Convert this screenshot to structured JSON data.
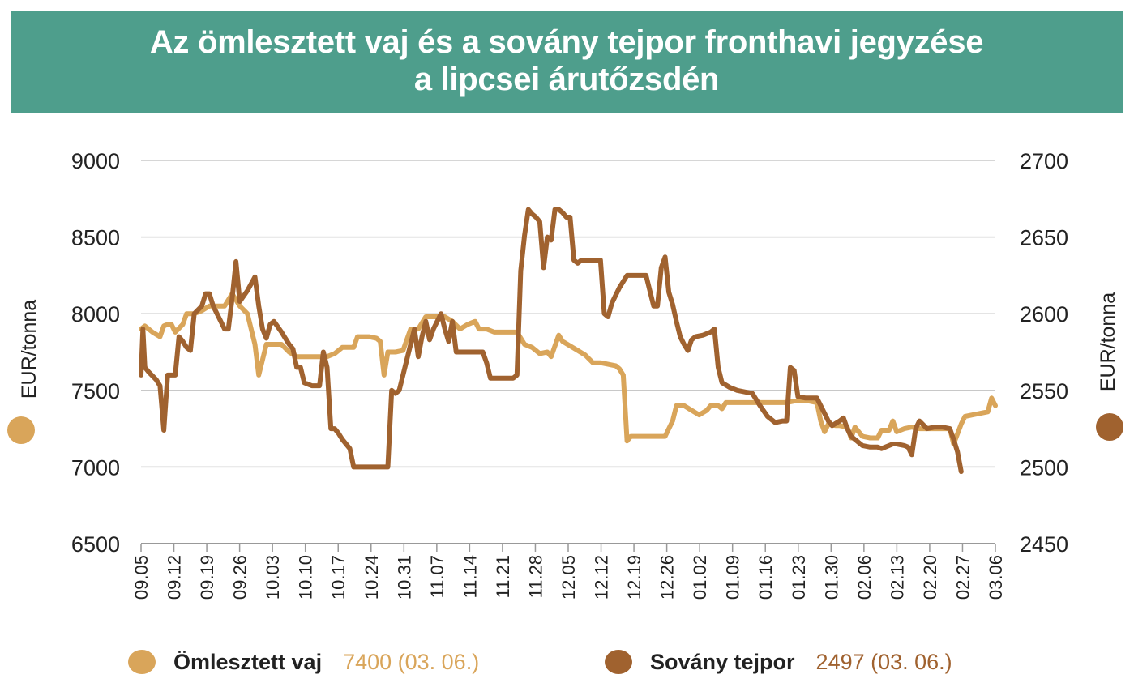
{
  "title": {
    "line1": "Az ömlesztett vaj és a sovány tejpor fronthavi jegyzése",
    "line2": "a lipcsei árutőzsdén"
  },
  "colors": {
    "header_bg": "#4e9e8c",
    "butter": "#d9a55a",
    "milk_powder": "#a0622f",
    "grid": "#c8c8c8"
  },
  "legend": {
    "butter_name": "Ömlesztett vaj",
    "butter_value": "7400 (03. 06.)",
    "milk_name": "Sovány tejpor",
    "milk_value": "2497 (03. 06.)"
  },
  "chart_data": {
    "type": "line",
    "ylabel_left": "EUR/tonna",
    "ylabel_right": "EUR/tonna",
    "ylim_left": [
      6500,
      9000
    ],
    "ylim_right": [
      2450,
      2700
    ],
    "yticks_left": [
      6500,
      7000,
      7500,
      8000,
      8500,
      9000
    ],
    "yticks_right": [
      2450,
      2500,
      2550,
      2600,
      2650,
      2700
    ],
    "x_tick_labels": [
      "09.05",
      "09.12",
      "09.19",
      "09.26",
      "10.03",
      "10.10",
      "10.17",
      "10.24",
      "10.31",
      "11.07",
      "11.14",
      "11.21",
      "11.28",
      "12.05",
      "12.12",
      "12.19",
      "12.26",
      "01.02",
      "01.09",
      "01.16",
      "01.23",
      "01.30",
      "02.06",
      "02.13",
      "02.20",
      "02.27",
      "03.06"
    ],
    "x_index_range": [
      0,
      182
    ],
    "grid": "horizontal",
    "legend_position": "bottom",
    "series": [
      {
        "name": "Ömlesztett vaj",
        "axis": "left",
        "points": [
          [
            0,
            7900
          ],
          [
            1,
            7920
          ],
          [
            3,
            7880
          ],
          [
            5,
            7850
          ],
          [
            6,
            7920
          ],
          [
            7,
            7930
          ],
          [
            8,
            7930
          ],
          [
            9,
            7880
          ],
          [
            11,
            7930
          ],
          [
            12,
            8000
          ],
          [
            14,
            8000
          ],
          [
            16,
            8020
          ],
          [
            18,
            8050
          ],
          [
            20,
            8050
          ],
          [
            22,
            8050
          ],
          [
            24,
            8130
          ],
          [
            26,
            8050
          ],
          [
            28,
            8000
          ],
          [
            30,
            7800
          ],
          [
            31,
            7600
          ],
          [
            32,
            7700
          ],
          [
            33,
            7800
          ],
          [
            35,
            7800
          ],
          [
            37,
            7800
          ],
          [
            39,
            7750
          ],
          [
            41,
            7720
          ],
          [
            43,
            7720
          ],
          [
            45,
            7720
          ],
          [
            47,
            7720
          ],
          [
            49,
            7720
          ],
          [
            51,
            7740
          ],
          [
            53,
            7780
          ],
          [
            56,
            7780
          ],
          [
            57,
            7850
          ],
          [
            60,
            7850
          ],
          [
            62,
            7840
          ],
          [
            63,
            7820
          ],
          [
            64,
            7600
          ],
          [
            65,
            7750
          ],
          [
            67,
            7750
          ],
          [
            69,
            7760
          ],
          [
            71,
            7900
          ],
          [
            73,
            7900
          ],
          [
            75,
            7980
          ],
          [
            78,
            7980
          ],
          [
            80,
            7980
          ],
          [
            82,
            7950
          ],
          [
            84,
            7900
          ],
          [
            86,
            7930
          ],
          [
            88,
            7950
          ],
          [
            89,
            7900
          ],
          [
            91,
            7900
          ],
          [
            93,
            7880
          ],
          [
            95,
            7880
          ],
          [
            97,
            7880
          ],
          [
            99,
            7880
          ],
          [
            101,
            7800
          ],
          [
            103,
            7780
          ],
          [
            105,
            7740
          ],
          [
            107,
            7750
          ],
          [
            108,
            7720
          ],
          [
            110,
            7860
          ],
          [
            111,
            7820
          ],
          [
            113,
            7790
          ],
          [
            115,
            7760
          ],
          [
            117,
            7730
          ],
          [
            119,
            7680
          ],
          [
            121,
            7680
          ],
          [
            123,
            7670
          ],
          [
            125,
            7660
          ],
          [
            126,
            7640
          ],
          [
            127,
            7600
          ],
          [
            128,
            7170
          ],
          [
            129,
            7200
          ],
          [
            131,
            7200
          ],
          [
            133,
            7200
          ],
          [
            135,
            7200
          ],
          [
            137,
            7200
          ],
          [
            138,
            7200
          ],
          [
            140,
            7300
          ],
          [
            141,
            7400
          ],
          [
            143,
            7400
          ],
          [
            145,
            7370
          ],
          [
            147,
            7340
          ],
          [
            149,
            7370
          ],
          [
            150,
            7400
          ],
          [
            152,
            7400
          ],
          [
            153,
            7380
          ],
          [
            154,
            7420
          ],
          [
            156,
            7420
          ],
          [
            158,
            7420
          ],
          [
            160,
            7420
          ],
          [
            162,
            7420
          ],
          [
            164,
            7420
          ],
          [
            166,
            7420
          ],
          [
            168,
            7420
          ],
          [
            170,
            7420
          ],
          [
            172,
            7430
          ],
          [
            174,
            7430
          ],
          [
            176,
            7430
          ],
          [
            178,
            7420
          ],
          [
            179,
            7300
          ],
          [
            180,
            7230
          ],
          [
            181,
            7280
          ],
          [
            183,
            7270
          ],
          [
            184,
            7270
          ],
          [
            186,
            7260
          ],
          [
            187,
            7190
          ],
          [
            188,
            7260
          ],
          [
            190,
            7200
          ],
          [
            192,
            7190
          ],
          [
            194,
            7190
          ],
          [
            195,
            7240
          ],
          [
            197,
            7240
          ],
          [
            198,
            7300
          ],
          [
            199,
            7230
          ],
          [
            201,
            7250
          ],
          [
            203,
            7260
          ],
          [
            205,
            7250
          ],
          [
            207,
            7250
          ],
          [
            209,
            7250
          ],
          [
            211,
            7250
          ],
          [
            213,
            7250
          ],
          [
            214,
            7150
          ],
          [
            216,
            7280
          ],
          [
            217,
            7330
          ],
          [
            219,
            7340
          ],
          [
            221,
            7350
          ],
          [
            223,
            7360
          ],
          [
            224,
            7450
          ],
          [
            225,
            7400
          ]
        ]
      },
      {
        "name": "Sovány tejpor",
        "axis": "right",
        "points": [
          [
            0,
            2560
          ],
          [
            0.5,
            2590
          ],
          [
            1,
            2565
          ],
          [
            2,
            2562
          ],
          [
            4,
            2557
          ],
          [
            5,
            2553
          ],
          [
            6,
            2524
          ],
          [
            7,
            2560
          ],
          [
            9,
            2560
          ],
          [
            10,
            2585
          ],
          [
            11,
            2582
          ],
          [
            12,
            2578
          ],
          [
            13,
            2576
          ],
          [
            14,
            2600
          ],
          [
            16,
            2605
          ],
          [
            17,
            2613
          ],
          [
            18,
            2613
          ],
          [
            19,
            2605
          ],
          [
            21,
            2595
          ],
          [
            22,
            2590
          ],
          [
            23,
            2590
          ],
          [
            24,
            2610
          ],
          [
            25,
            2634
          ],
          [
            26,
            2608
          ],
          [
            28,
            2615
          ],
          [
            30,
            2624
          ],
          [
            31,
            2605
          ],
          [
            32,
            2590
          ],
          [
            33,
            2584
          ],
          [
            34,
            2593
          ],
          [
            35,
            2595
          ],
          [
            37,
            2588
          ],
          [
            39,
            2580
          ],
          [
            40,
            2577
          ],
          [
            41,
            2565
          ],
          [
            42,
            2565
          ],
          [
            43,
            2555
          ],
          [
            45,
            2553
          ],
          [
            47,
            2553
          ],
          [
            48,
            2575
          ],
          [
            49,
            2565
          ],
          [
            50,
            2525
          ],
          [
            51,
            2525
          ],
          [
            52,
            2522
          ],
          [
            53,
            2518
          ],
          [
            55,
            2512
          ],
          [
            56,
            2500
          ],
          [
            58,
            2500
          ],
          [
            60,
            2500
          ],
          [
            62,
            2500
          ],
          [
            64,
            2500
          ],
          [
            65,
            2500
          ],
          [
            66,
            2550
          ],
          [
            67,
            2548
          ],
          [
            68,
            2550
          ],
          [
            69,
            2560
          ],
          [
            71,
            2580
          ],
          [
            72,
            2590
          ],
          [
            73,
            2572
          ],
          [
            74,
            2585
          ],
          [
            75,
            2595
          ],
          [
            76,
            2583
          ],
          [
            77,
            2590
          ],
          [
            79,
            2600
          ],
          [
            80,
            2590
          ],
          [
            81,
            2582
          ],
          [
            82,
            2595
          ],
          [
            83,
            2575
          ],
          [
            85,
            2575
          ],
          [
            87,
            2575
          ],
          [
            89,
            2575
          ],
          [
            90,
            2575
          ],
          [
            91,
            2568
          ],
          [
            92,
            2558
          ],
          [
            94,
            2558
          ],
          [
            96,
            2558
          ],
          [
            98,
            2558
          ],
          [
            99,
            2560
          ],
          [
            100,
            2628
          ],
          [
            101,
            2651
          ],
          [
            102,
            2668
          ],
          [
            103,
            2665
          ],
          [
            104,
            2663
          ],
          [
            105,
            2660
          ],
          [
            106,
            2630
          ],
          [
            107,
            2650
          ],
          [
            108,
            2648
          ],
          [
            109,
            2668
          ],
          [
            110,
            2668
          ],
          [
            111,
            2666
          ],
          [
            112,
            2663
          ],
          [
            113,
            2663
          ],
          [
            114,
            2635
          ],
          [
            115,
            2633
          ],
          [
            116,
            2635
          ],
          [
            118,
            2635
          ],
          [
            120,
            2635
          ],
          [
            121,
            2635
          ],
          [
            122,
            2600
          ],
          [
            123,
            2598
          ],
          [
            124,
            2607
          ],
          [
            126,
            2617
          ],
          [
            128,
            2625
          ],
          [
            130,
            2625
          ],
          [
            132,
            2625
          ],
          [
            133,
            2625
          ],
          [
            134,
            2615
          ],
          [
            135,
            2605
          ],
          [
            136,
            2605
          ],
          [
            137,
            2630
          ],
          [
            138,
            2637
          ],
          [
            139,
            2614
          ],
          [
            140,
            2606
          ],
          [
            141,
            2595
          ],
          [
            142,
            2585
          ],
          [
            143,
            2580
          ],
          [
            144,
            2576
          ],
          [
            145,
            2583
          ],
          [
            146,
            2585
          ],
          [
            148,
            2586
          ],
          [
            150,
            2588
          ],
          [
            151,
            2590
          ],
          [
            152,
            2565
          ],
          [
            153,
            2555
          ],
          [
            155,
            2552
          ],
          [
            157,
            2550
          ],
          [
            159,
            2549
          ],
          [
            161,
            2548
          ],
          [
            163,
            2540
          ],
          [
            165,
            2533
          ],
          [
            167,
            2529
          ],
          [
            169,
            2530
          ],
          [
            170,
            2530
          ],
          [
            171,
            2565
          ],
          [
            172,
            2563
          ],
          [
            173,
            2546
          ],
          [
            175,
            2545
          ],
          [
            177,
            2545
          ],
          [
            178,
            2545
          ],
          [
            179,
            2540
          ],
          [
            180,
            2535
          ],
          [
            181,
            2530
          ],
          [
            182,
            2527
          ],
          [
            184,
            2530
          ],
          [
            185,
            2532
          ],
          [
            186,
            2525
          ],
          [
            187,
            2520
          ],
          [
            188,
            2518
          ],
          [
            190,
            2514
          ],
          [
            192,
            2513
          ],
          [
            194,
            2513
          ],
          [
            195,
            2512
          ],
          [
            196,
            2513
          ],
          [
            198,
            2515
          ],
          [
            199,
            2515
          ],
          [
            201,
            2514
          ],
          [
            202,
            2513
          ],
          [
            203,
            2508
          ],
          [
            204,
            2525
          ],
          [
            205,
            2530
          ],
          [
            207,
            2525
          ],
          [
            209,
            2526
          ],
          [
            211,
            2526
          ],
          [
            213,
            2525
          ],
          [
            214,
            2518
          ],
          [
            215,
            2510
          ],
          [
            216,
            2497
          ]
        ]
      }
    ]
  }
}
